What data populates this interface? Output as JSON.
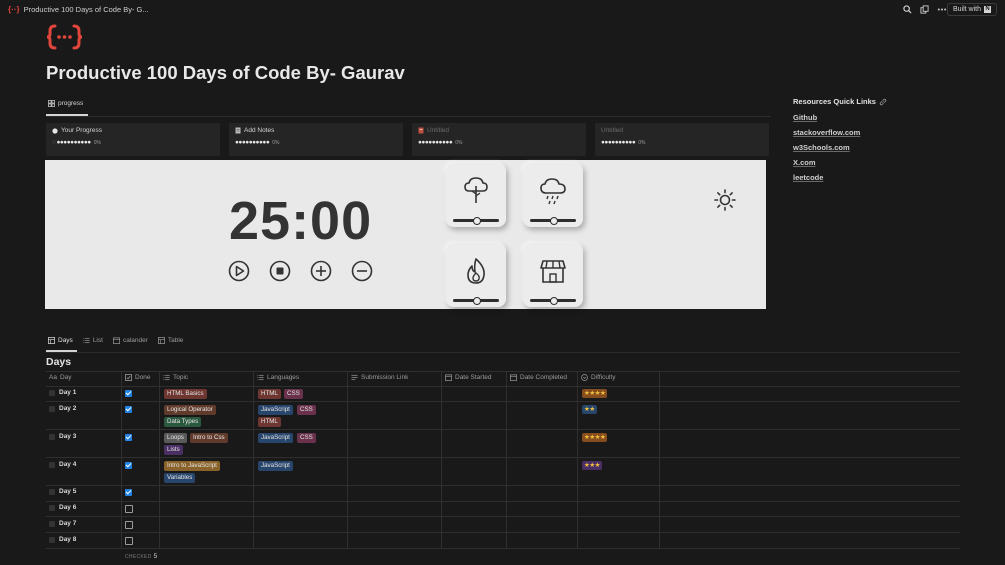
{
  "browser": {
    "tab_title": "Productive 100 Days of Code By- G...",
    "favicon": "{··}",
    "built_with": "Built with"
  },
  "page": {
    "title": "Productive 100 Days of Code By- Gaurav",
    "icon": "code-braces-icon"
  },
  "board": {
    "view_tab": "progress",
    "cards": [
      {
        "title": "Your Progress",
        "dots": "●●●●●●●●●●",
        "first_dot": "○",
        "percent": "0%",
        "dim": false
      },
      {
        "title": "Add Notes",
        "dots": "●●●●●●●●●●",
        "percent": "0%",
        "dim": false
      },
      {
        "title": "Untitled",
        "dots": "●●●●●●●●●●",
        "percent": "0%",
        "dim": true
      },
      {
        "title": "Untitled",
        "dots": "●●●●●●●●●●",
        "percent": "0%",
        "dim": true
      }
    ]
  },
  "timer": {
    "time": "25:00",
    "controls": [
      "play",
      "stop",
      "add",
      "subtract"
    ],
    "sounds": [
      {
        "name": "tree-icon",
        "level": 0.5
      },
      {
        "name": "rain-cloud-icon",
        "level": 0.5
      },
      {
        "name": "fire-icon",
        "level": 0.5
      },
      {
        "name": "store-icon",
        "level": 0.5
      }
    ]
  },
  "resources": {
    "title": "Resources Quick Links",
    "links": [
      "Github",
      "stackoverflow.com",
      "w3Schools.com",
      "X.com",
      "leetcode"
    ]
  },
  "database": {
    "tabs": [
      "Days",
      "List",
      "calander",
      "Table"
    ],
    "title": "Days",
    "columns": [
      "Day",
      "Done",
      "Topic",
      "Languages",
      "Submission Link",
      "Date Started",
      "Date Completed",
      "Difficulty"
    ],
    "col_prefix_day": "Aa",
    "rows": [
      {
        "day": "Day 1",
        "done": true,
        "topics": [
          "HTML Basics"
        ],
        "languages": [
          "HTML",
          "CSS"
        ],
        "difficulty": "★★★★"
      },
      {
        "day": "Day 2",
        "done": true,
        "topics": [
          "Logical Operator",
          "Data Types"
        ],
        "languages": [
          "JavaScript",
          "CSS",
          "HTML"
        ],
        "difficulty": "★★"
      },
      {
        "day": "Day 3",
        "done": true,
        "topics": [
          "Loops",
          "Intro to Css",
          "Lists"
        ],
        "languages": [
          "JavaScript",
          "CSS"
        ],
        "difficulty": "★★★★"
      },
      {
        "day": "Day 4",
        "done": true,
        "topics": [
          "Intro to JavaScript",
          "Variables"
        ],
        "languages": [
          "JavaScript"
        ],
        "difficulty": "★★★"
      },
      {
        "day": "Day 5",
        "done": true,
        "topics": [],
        "languages": [],
        "difficulty": ""
      },
      {
        "day": "Day 6",
        "done": false,
        "topics": [],
        "languages": [],
        "difficulty": ""
      },
      {
        "day": "Day 7",
        "done": false,
        "topics": [],
        "languages": [],
        "difficulty": ""
      },
      {
        "day": "Day 8",
        "done": false,
        "topics": [],
        "languages": [],
        "difficulty": ""
      }
    ],
    "footer_label": "CHECKED",
    "footer_count": "5"
  }
}
